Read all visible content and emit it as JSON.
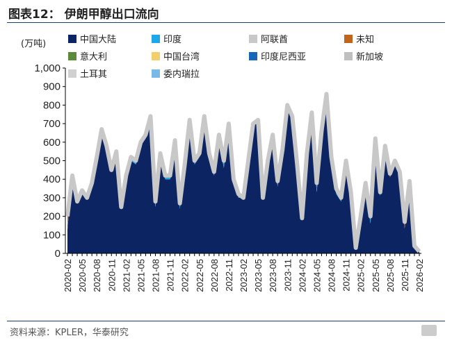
{
  "header": {
    "title": "图表12：  伊朗甲醇出口流向"
  },
  "footer": {
    "source": "资料来源：KPLER，华泰研究"
  },
  "chart_data": {
    "type": "area",
    "title": "伊朗甲醇出口流向",
    "ylabel": "(万吨)",
    "ylim": [
      0,
      1000
    ],
    "yticks": [
      "0",
      "100",
      "200",
      "300",
      "400",
      "500",
      "600",
      "700",
      "800",
      "900",
      "1,000"
    ],
    "xtick_labels": [
      "2020-02",
      "2020-05",
      "2020-08",
      "2020-11",
      "2021-02",
      "2021-05",
      "2021-08",
      "2021-11",
      "2022-02",
      "2022-05",
      "2022-08",
      "2022-11",
      "2023-02",
      "2023-05",
      "2023-08",
      "2023-11",
      "2024-02",
      "2024-05",
      "2024-08",
      "2024-11",
      "2025-02",
      "2025-05",
      "2025-08",
      "2025-11",
      "2026-02"
    ],
    "legend": [
      {
        "name": "中国大陆",
        "color": "#0d2463"
      },
      {
        "name": "印度",
        "color": "#1ea7e8"
      },
      {
        "name": "阿联酋",
        "color": "#c8c8c8"
      },
      {
        "name": "未知",
        "color": "#c0651e"
      },
      {
        "name": "意大利",
        "color": "#5a8a3a"
      },
      {
        "name": "中国台湾",
        "color": "#f3cf6b"
      },
      {
        "name": "印度尼西亚",
        "color": "#1565b8"
      },
      {
        "name": "新加坡",
        "color": "#bfbfbf"
      },
      {
        "name": "土耳其",
        "color": "#d0d0d0"
      },
      {
        "name": "委内瑞拉",
        "color": "#7ab8e8"
      }
    ],
    "start_month": "2020-02",
    "total": [
      200,
      420,
      280,
      340,
      300,
      380,
      520,
      670,
      580,
      450,
      550,
      250,
      420,
      520,
      500,
      600,
      640,
      740,
      280,
      540,
      420,
      420,
      610,
      270,
      480,
      720,
      500,
      540,
      740,
      540,
      440,
      640,
      500,
      700,
      400,
      320,
      300,
      500,
      700,
      720,
      300,
      500,
      640,
      390,
      560,
      800,
      740,
      480,
      190,
      540,
      760,
      380,
      660,
      860,
      520,
      350,
      300,
      500,
      330,
      30,
      200,
      380,
      200,
      620,
      330,
      580,
      430,
      500,
      440,
      170,
      390,
      40,
      10
    ],
    "series": [
      {
        "name": "未知",
        "values": [
          70,
          0,
          0,
          0,
          0,
          0,
          0,
          0,
          0,
          0,
          0,
          0,
          0,
          0,
          0,
          0,
          0,
          0,
          0,
          0,
          0,
          0,
          0,
          0,
          0,
          0,
          0,
          0,
          0,
          0,
          0,
          0,
          0,
          0,
          0,
          0,
          0,
          0,
          0,
          0,
          0,
          0,
          0,
          0,
          0,
          0,
          0,
          0,
          0,
          0,
          0,
          0,
          0,
          0,
          0,
          0,
          0,
          0,
          0,
          0,
          0,
          0,
          0,
          0,
          0,
          0,
          10,
          0,
          0,
          25,
          0,
          0,
          0
        ]
      },
      {
        "name": "印度",
        "values": [
          0,
          0,
          0,
          0,
          0,
          0,
          0,
          10,
          0,
          0,
          0,
          0,
          10,
          20,
          20,
          20,
          20,
          20,
          30,
          10,
          20,
          20,
          10,
          30,
          10,
          10,
          20,
          20,
          20,
          40,
          20,
          30,
          40,
          20,
          30,
          20,
          0,
          10,
          10,
          10,
          0,
          10,
          20,
          30,
          20,
          20,
          30,
          20,
          0,
          20,
          20,
          50,
          30,
          40,
          30,
          30,
          20,
          10,
          20,
          0,
          10,
          20,
          40,
          30,
          20,
          10,
          10,
          20,
          20,
          10,
          20,
          0,
          0
        ]
      }
    ]
  }
}
